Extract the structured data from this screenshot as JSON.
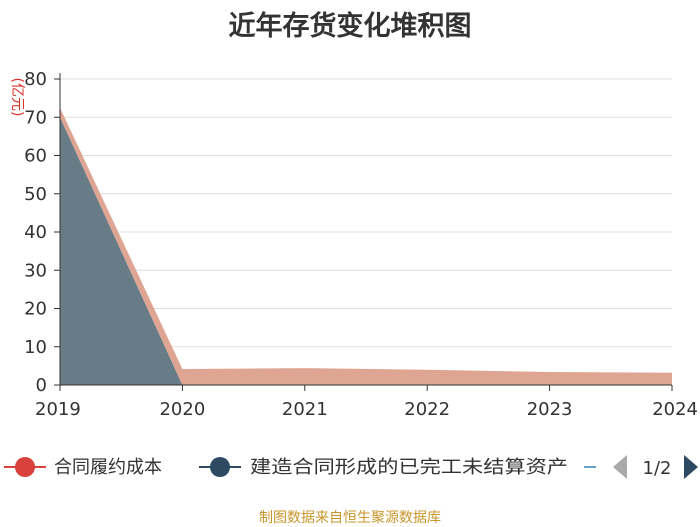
{
  "chart_data": {
    "type": "area",
    "stacked": true,
    "title": "近年存货变化堆积图",
    "y_unit": "(亿元)",
    "categories": [
      "2019",
      "2020",
      "2021",
      "2022",
      "2023",
      "2024"
    ],
    "ylim": [
      0,
      80
    ],
    "yticks": [
      0,
      10,
      20,
      30,
      40,
      50,
      60,
      70,
      80
    ],
    "grid": true,
    "legend_position": "bottom",
    "series": [
      {
        "name": "建造合同形成的已完工未结算资产",
        "color": "#687c87",
        "values": [
          70.0,
          0,
          0,
          0,
          0,
          0
        ]
      },
      {
        "name": "合同履约成本",
        "color": "#dea593",
        "values": [
          2.5,
          4.2,
          4.4,
          4.0,
          3.4,
          3.2
        ]
      }
    ],
    "legend": {
      "items": [
        {
          "name": "合同履约成本",
          "color": "#d9413d"
        },
        {
          "name": "建造合同形成的已完工未结算资产",
          "color": "#2e4a62"
        }
      ],
      "page": "1/2"
    }
  },
  "source": "制图数据来自恒生聚源数据库",
  "colors": {
    "axis": "#333333",
    "grid": "#e0e0e0",
    "pager_inactive": "#aaaaaa",
    "pager_active": "#2e4a62"
  }
}
